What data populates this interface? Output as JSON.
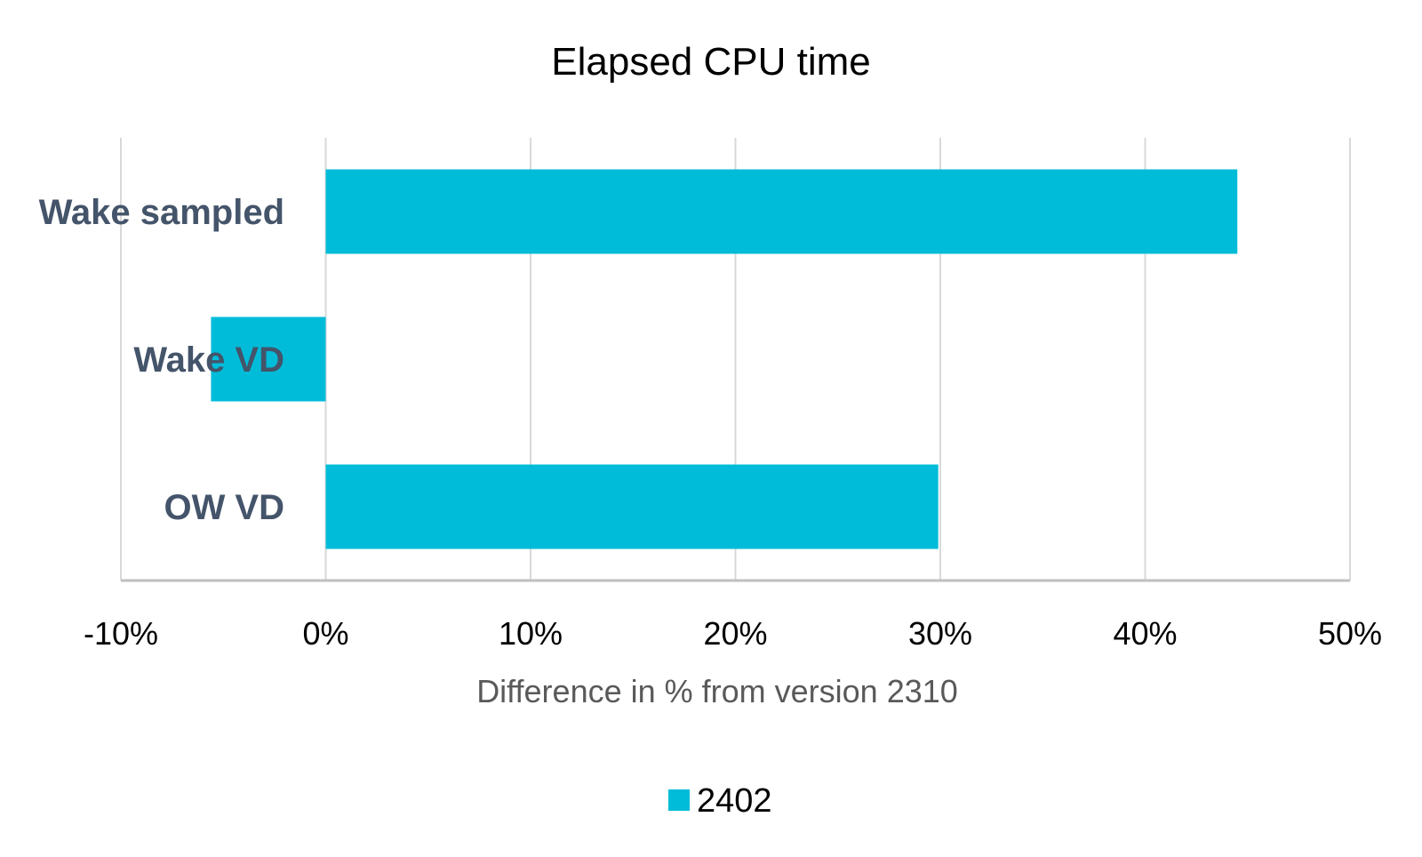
{
  "chart_data": {
    "type": "bar",
    "orientation": "horizontal",
    "title": "Elapsed CPU time",
    "xlabel": "Difference in % from version 2310",
    "ylabel": "",
    "categories": [
      "Wake sampled",
      "Wake VD",
      "OW VD"
    ],
    "series": [
      {
        "name": "2402",
        "values": [
          44.5,
          -5.6,
          29.9
        ]
      }
    ],
    "xlim": [
      -10,
      50
    ],
    "xticks": [
      -10,
      0,
      10,
      20,
      30,
      40,
      50
    ],
    "xtick_labels": [
      "-10%",
      "0%",
      "10%",
      "20%",
      "30%",
      "40%",
      "50%"
    ],
    "grid": "vertical",
    "legend_position": "bottom",
    "colors": {
      "bar": "#00BCD9",
      "grid": "#D9D9D9",
      "axis": "#BFBFBF",
      "category_text": "#44546A"
    }
  }
}
